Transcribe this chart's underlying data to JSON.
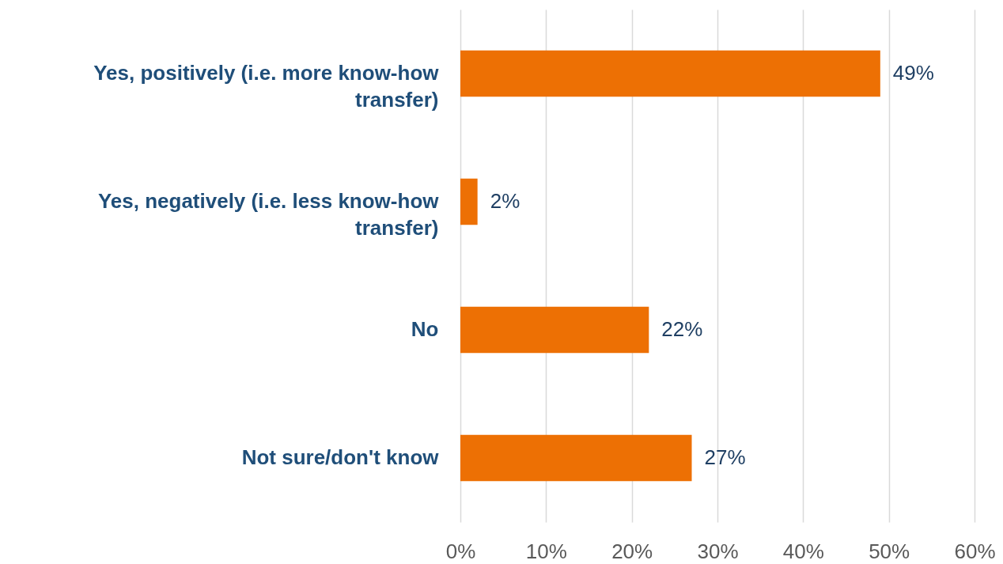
{
  "chart_data": {
    "type": "bar",
    "orientation": "horizontal",
    "categories": [
      "Yes, positively (i.e. more know-how transfer)",
      "Yes, negatively (i.e. less know-how transfer)",
      "No",
      "Not sure/don't know"
    ],
    "values": [
      49,
      2,
      22,
      27
    ],
    "value_labels": [
      "49%",
      "2%",
      "22%",
      "27%"
    ],
    "color": "#ed7004",
    "xlim": [
      0,
      60
    ],
    "xticks": [
      {
        "value": 0,
        "label": "0%"
      },
      {
        "value": 10,
        "label": "10%"
      },
      {
        "value": 20,
        "label": "20%"
      },
      {
        "value": 30,
        "label": "30%"
      },
      {
        "value": 40,
        "label": "40%"
      },
      {
        "value": 50,
        "label": "50%"
      },
      {
        "value": 60,
        "label": "60%"
      }
    ],
    "grid": "x"
  }
}
